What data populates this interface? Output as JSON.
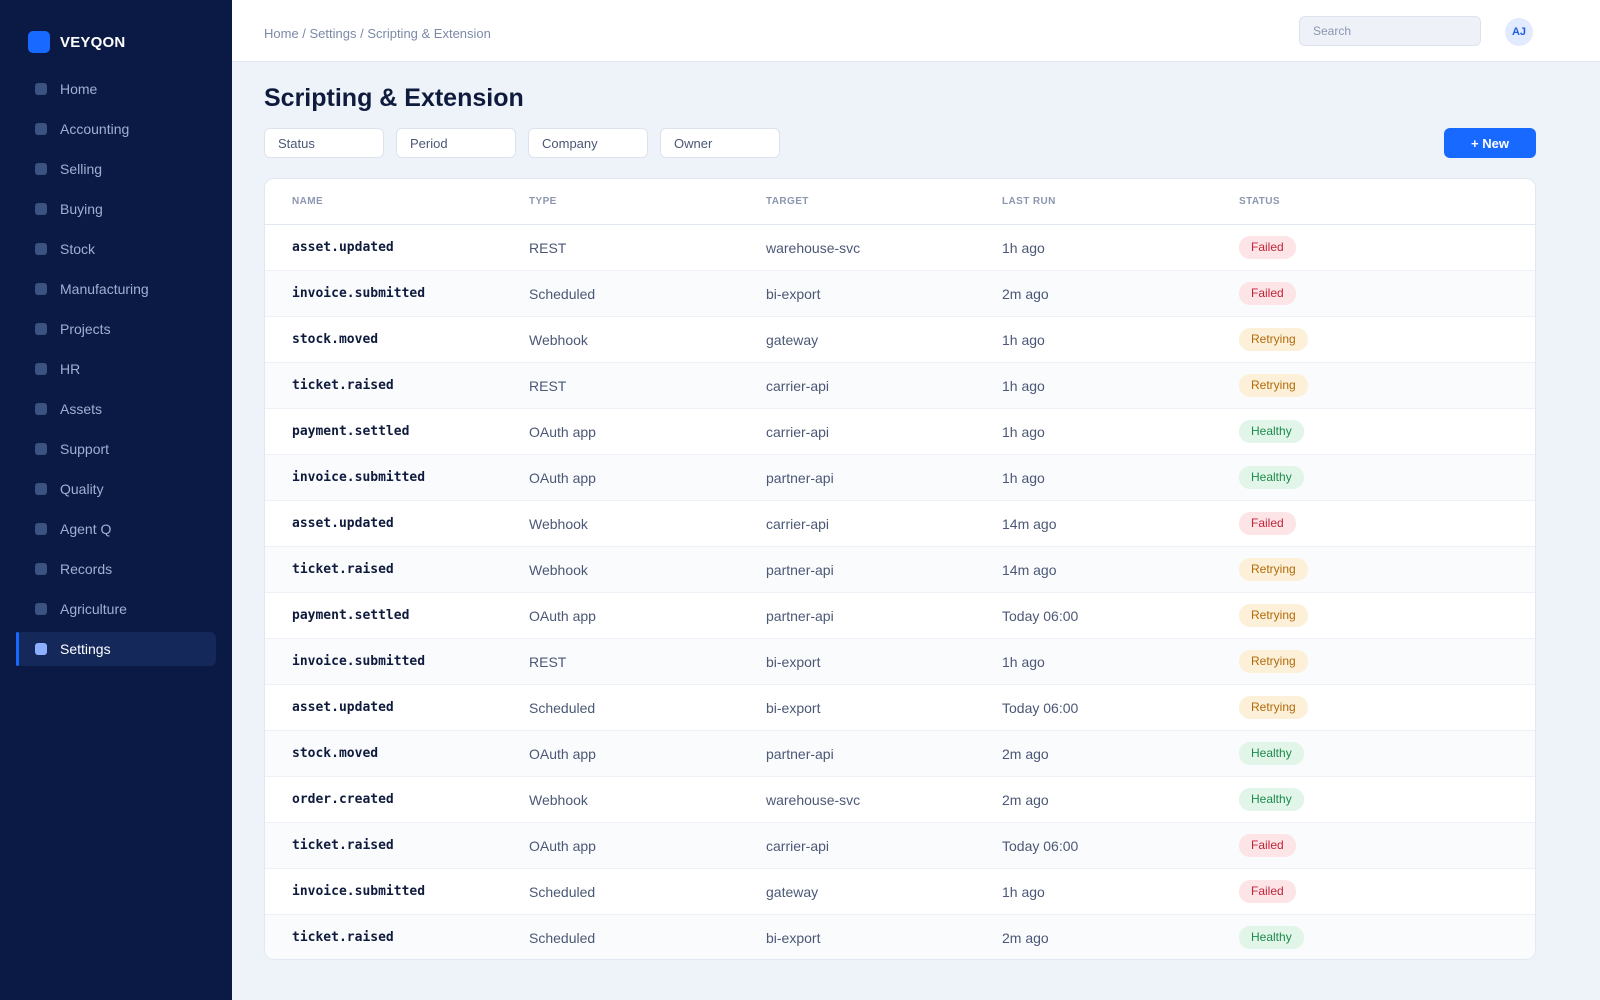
{
  "brand": {
    "name": "VEYQON",
    "accent": "#1769ff"
  },
  "sidebar": {
    "items": [
      {
        "label": "Home"
      },
      {
        "label": "Accounting"
      },
      {
        "label": "Selling"
      },
      {
        "label": "Buying"
      },
      {
        "label": "Stock"
      },
      {
        "label": "Manufacturing"
      },
      {
        "label": "Projects"
      },
      {
        "label": "HR"
      },
      {
        "label": "Assets"
      },
      {
        "label": "Support"
      },
      {
        "label": "Quality"
      },
      {
        "label": "Agent Q"
      },
      {
        "label": "Records"
      },
      {
        "label": "Agriculture"
      },
      {
        "label": "Settings",
        "active": true
      }
    ]
  },
  "header": {
    "breadcrumb": "Home / Settings / Scripting & Extension",
    "search_placeholder": "Search",
    "avatar_initials": "AJ"
  },
  "main": {
    "title": "Scripting & Extension",
    "filters": [
      "Status",
      "Period",
      "Company",
      "Owner"
    ],
    "new_label": "+ New"
  },
  "table": {
    "columns": [
      "NAME",
      "TYPE",
      "TARGET",
      "LAST RUN",
      "STATUS"
    ],
    "rows": [
      {
        "name": "asset.updated",
        "type": "REST",
        "target": "warehouse-svc",
        "last_run": "1h ago",
        "status": "Failed"
      },
      {
        "name": "invoice.submitted",
        "type": "Scheduled",
        "target": "bi-export",
        "last_run": "2m ago",
        "status": "Failed"
      },
      {
        "name": "stock.moved",
        "type": "Webhook",
        "target": "gateway",
        "last_run": "1h ago",
        "status": "Retrying"
      },
      {
        "name": "ticket.raised",
        "type": "REST",
        "target": "carrier-api",
        "last_run": "1h ago",
        "status": "Retrying"
      },
      {
        "name": "payment.settled",
        "type": "OAuth app",
        "target": "carrier-api",
        "last_run": "1h ago",
        "status": "Healthy"
      },
      {
        "name": "invoice.submitted",
        "type": "OAuth app",
        "target": "partner-api",
        "last_run": "1h ago",
        "status": "Healthy"
      },
      {
        "name": "asset.updated",
        "type": "Webhook",
        "target": "carrier-api",
        "last_run": "14m ago",
        "status": "Failed"
      },
      {
        "name": "ticket.raised",
        "type": "Webhook",
        "target": "partner-api",
        "last_run": "14m ago",
        "status": "Retrying"
      },
      {
        "name": "payment.settled",
        "type": "OAuth app",
        "target": "partner-api",
        "last_run": "Today 06:00",
        "status": "Retrying"
      },
      {
        "name": "invoice.submitted",
        "type": "REST",
        "target": "bi-export",
        "last_run": "1h ago",
        "status": "Retrying"
      },
      {
        "name": "asset.updated",
        "type": "Scheduled",
        "target": "bi-export",
        "last_run": "Today 06:00",
        "status": "Retrying"
      },
      {
        "name": "stock.moved",
        "type": "OAuth app",
        "target": "partner-api",
        "last_run": "2m ago",
        "status": "Healthy"
      },
      {
        "name": "order.created",
        "type": "Webhook",
        "target": "warehouse-svc",
        "last_run": "2m ago",
        "status": "Healthy"
      },
      {
        "name": "ticket.raised",
        "type": "OAuth app",
        "target": "carrier-api",
        "last_run": "Today 06:00",
        "status": "Failed"
      },
      {
        "name": "invoice.submitted",
        "type": "Scheduled",
        "target": "gateway",
        "last_run": "1h ago",
        "status": "Failed"
      },
      {
        "name": "ticket.raised",
        "type": "Scheduled",
        "target": "bi-export",
        "last_run": "2m ago",
        "status": "Healthy"
      }
    ]
  },
  "status_colors": {
    "Failed": "#c1243a",
    "Retrying": "#b26a09",
    "Healthy": "#1e8a4d"
  }
}
